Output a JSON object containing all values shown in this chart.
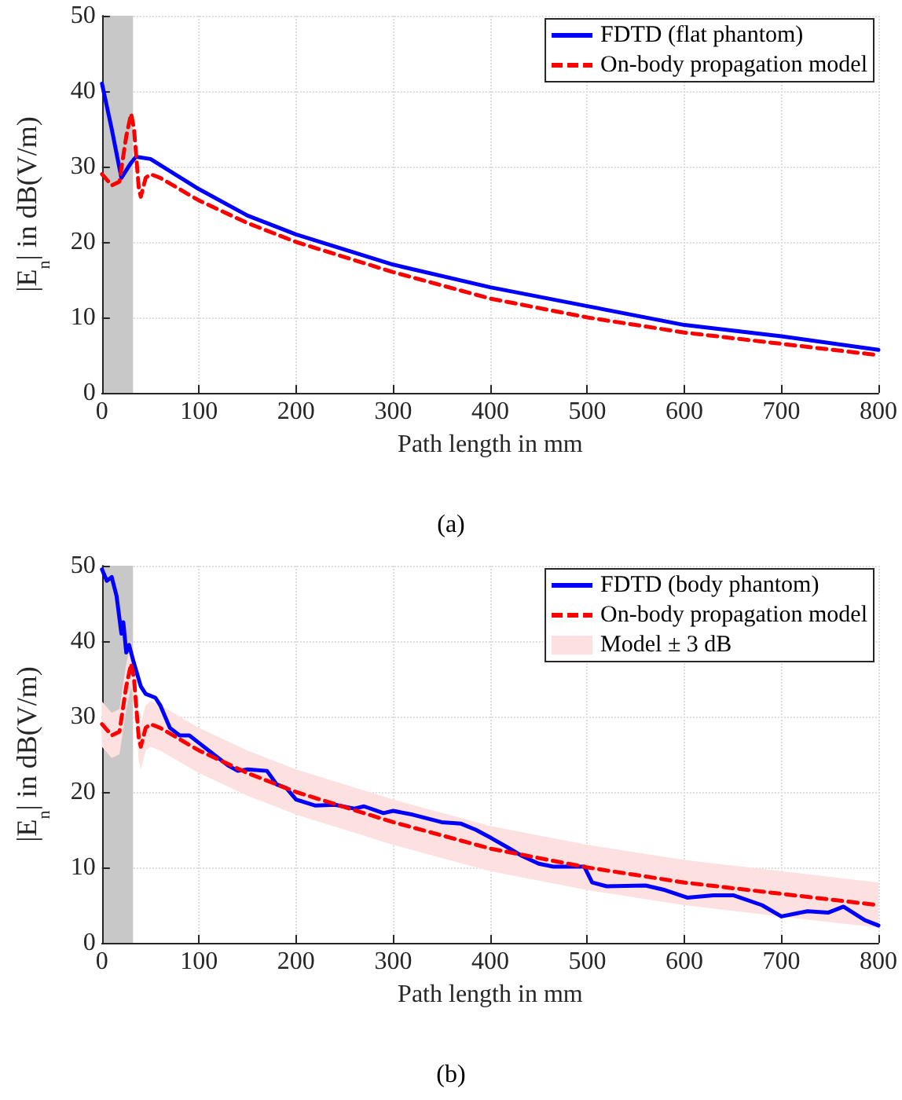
{
  "chart_data": [
    {
      "type": "line",
      "xlabel": "Path length in mm",
      "ylabel": "|E$_{n}$| in dB(V/m)",
      "annotations": [
        "(a)"
      ],
      "xlim": [
        0,
        800
      ],
      "xticks": [
        0,
        100,
        200,
        300,
        400,
        500,
        600,
        700,
        800
      ],
      "ylim": [
        0,
        50
      ],
      "yticks": [
        0,
        10,
        20,
        30,
        40,
        50
      ],
      "grid": true,
      "legend": "top right",
      "marker": "none",
      "bands": [
        {
          "axis": "x",
          "from": 0,
          "to": 32,
          "color": "#c8c8c8"
        }
      ],
      "series": [
        {
          "name": "FDTD (flat phantom)",
          "color": "#0000ff",
          "line_style": "solid",
          "x": [
            0,
            10,
            20,
            30,
            35,
            50,
            100,
            150,
            200,
            300,
            400,
            500,
            600,
            700,
            800
          ],
          "values": [
            41,
            35,
            28.5,
            30.5,
            31.3,
            31,
            27,
            23.5,
            21,
            17,
            14,
            11.5,
            9,
            7.5,
            5.7
          ]
        },
        {
          "name": "On-body propagation model",
          "color": "#ff0000",
          "line_style": "dashed",
          "x": [
            0,
            10,
            18,
            25,
            30,
            33,
            38,
            40,
            45,
            50,
            60,
            100,
            150,
            200,
            300,
            400,
            500,
            600,
            700,
            800
          ],
          "values": [
            29,
            27.5,
            28,
            34,
            37,
            35,
            27,
            26,
            28.5,
            29,
            28.5,
            25.5,
            22.5,
            20,
            16,
            12.5,
            10,
            8,
            6.5,
            5
          ]
        }
      ]
    },
    {
      "type": "line",
      "xlabel": "Path length in mm",
      "ylabel": "|E$_{n}$| in dB(V/m)",
      "annotations": [
        "(b)"
      ],
      "xlim": [
        0,
        800
      ],
      "xticks": [
        0,
        100,
        200,
        300,
        400,
        500,
        600,
        700,
        800
      ],
      "ylim": [
        0,
        50
      ],
      "yticks": [
        0,
        10,
        20,
        30,
        40,
        50
      ],
      "grid": true,
      "legend": "top right",
      "marker": "none",
      "bands": [
        {
          "axis": "x",
          "from": 0,
          "to": 32,
          "color": "#c8c8c8"
        }
      ],
      "series": [
        {
          "name": "FDTD (body phantom)",
          "color": "#0000ff",
          "line_style": "solid",
          "x": [
            0,
            5,
            10,
            15,
            20,
            22,
            25,
            28,
            32,
            40,
            45,
            55,
            60,
            70,
            80,
            90,
            100,
            110,
            130,
            140,
            150,
            170,
            180,
            190,
            200,
            220,
            240,
            260,
            270,
            290,
            300,
            320,
            350,
            370,
            385,
            401,
            420,
            433,
            450,
            465,
            497,
            505,
            520,
            560,
            580,
            603,
            630,
            651,
            680,
            700,
            727,
            748,
            764,
            786,
            800
          ],
          "values": [
            49.5,
            48,
            48.5,
            46,
            41,
            42.5,
            38.5,
            39.5,
            37.5,
            34,
            33,
            32.5,
            31.5,
            28.5,
            27.5,
            27.5,
            26.5,
            25.5,
            23.5,
            22.8,
            23,
            22.8,
            21,
            20.5,
            19,
            18.2,
            18.3,
            17.8,
            18.1,
            17.2,
            17.5,
            17,
            16,
            15.8,
            15,
            13.9,
            12.5,
            11.5,
            10.5,
            10.1,
            10.1,
            8,
            7.5,
            7.6,
            7,
            6,
            6.3,
            6.3,
            5,
            3.5,
            4.2,
            4,
            4.8,
            3,
            2.3
          ]
        },
        {
          "name": "On-body propagation model",
          "color": "#ff0000",
          "line_style": "dashed",
          "x": [
            0,
            10,
            18,
            25,
            30,
            33,
            38,
            40,
            45,
            50,
            60,
            100,
            150,
            200,
            300,
            400,
            500,
            600,
            700,
            800
          ],
          "values": [
            29,
            27.5,
            28,
            34,
            37,
            35,
            27,
            26,
            28.5,
            29,
            28.5,
            25.5,
            22.5,
            20,
            16,
            12.5,
            10,
            8,
            6.5,
            5
          ]
        },
        {
          "name": "Model ± 3 dB",
          "type": "area",
          "color": "#fde0e0",
          "x": [
            0,
            10,
            18,
            25,
            30,
            33,
            38,
            40,
            45,
            50,
            60,
            100,
            150,
            200,
            300,
            400,
            500,
            600,
            700,
            800
          ],
          "values": [
            null,
            null,
            null,
            null,
            null,
            null,
            null,
            null,
            null,
            null,
            null,
            null,
            null,
            null,
            null,
            null,
            null,
            null,
            null,
            null
          ],
          "lower": [
            26,
            24.5,
            25,
            31,
            34,
            32,
            24,
            23,
            25.5,
            26,
            25.5,
            22.5,
            19.5,
            17,
            13,
            9.5,
            7,
            5,
            3.5,
            2
          ],
          "upper": [
            32,
            30.5,
            31,
            37,
            40,
            38,
            30,
            29,
            31.5,
            32,
            31.5,
            28.5,
            25.5,
            23,
            19,
            15.5,
            13,
            11,
            9.5,
            8
          ]
        }
      ]
    }
  ]
}
